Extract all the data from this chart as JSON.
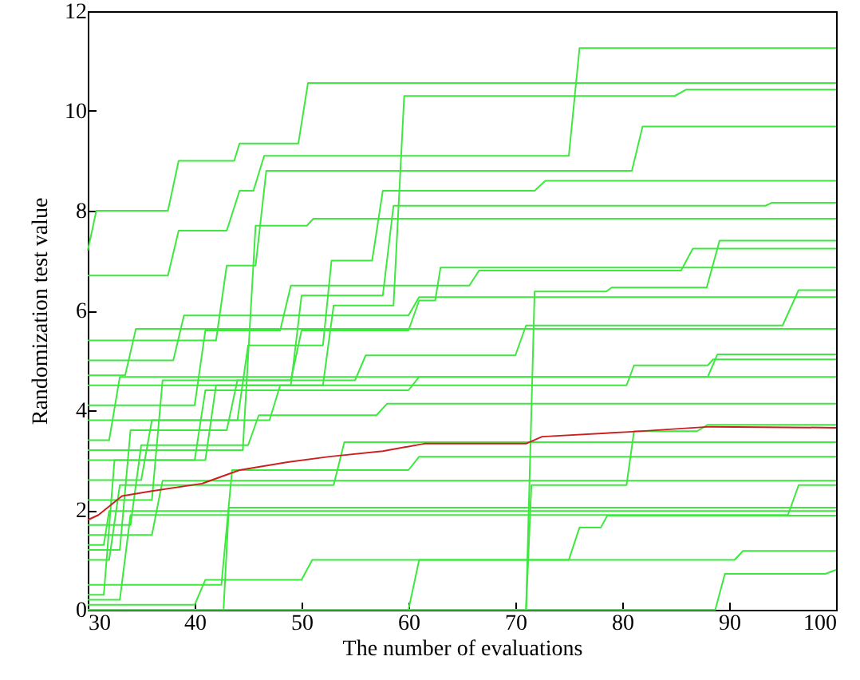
{
  "chart_data": {
    "type": "line",
    "xlabel": "The number of evaluations",
    "ylabel": "Randomization test value",
    "xlim": [
      30,
      100
    ],
    "xticks": [
      30,
      40,
      50,
      60,
      70,
      80,
      90,
      100
    ],
    "ylim": [
      0,
      12
    ],
    "yticks": [
      0,
      2,
      4,
      6,
      8,
      10,
      12
    ],
    "series": [
      {
        "color": "#3ee83e",
        "x": [
          30,
          30.8,
          37.5,
          38.5,
          43.7,
          44.2,
          49.7,
          50.6,
          100
        ],
        "values": [
          7.2,
          8.0,
          8.0,
          9.0,
          9.0,
          9.35,
          9.35,
          10.56,
          10.56
        ]
      },
      {
        "color": "#3ee83e",
        "x": [
          30,
          37.5,
          38.5,
          43,
          44.2,
          45.5,
          46.5,
          75,
          76,
          100
        ],
        "values": [
          6.7,
          6.7,
          7.6,
          7.6,
          8.4,
          8.4,
          9.1,
          9.1,
          11.26,
          11.26
        ]
      },
      {
        "color": "#3ee83e",
        "x": [
          30,
          41,
          42,
          52,
          53,
          58.6,
          59.6,
          84.9,
          86,
          100
        ],
        "values": [
          3.0,
          3.0,
          4.5,
          4.5,
          6.1,
          6.1,
          10.3,
          10.3,
          10.43,
          10.43
        ]
      },
      {
        "color": "#3ee83e",
        "x": [
          30,
          42,
          43,
          45.7,
          46.7,
          80.9,
          81.9,
          100
        ],
        "values": [
          5.4,
          5.4,
          6.9,
          6.9,
          8.8,
          8.8,
          9.69,
          9.69
        ]
      },
      {
        "color": "#3ee83e",
        "x": [
          30,
          44,
          45,
          52,
          52.8,
          56.6,
          57.6,
          71.8,
          72.8,
          100
        ],
        "values": [
          3.8,
          3.8,
          5.3,
          5.3,
          7.0,
          7.0,
          8.4,
          8.4,
          8.6,
          8.6
        ]
      },
      {
        "color": "#3ee83e",
        "x": [
          30,
          49,
          50,
          57.6,
          58.6,
          93.4,
          94,
          100
        ],
        "values": [
          4.5,
          4.5,
          6.3,
          6.3,
          8.1,
          8.1,
          8.16,
          8.16
        ]
      },
      {
        "color": "#3ee83e",
        "x": [
          30,
          44.5,
          45.7,
          50.5,
          51.1,
          100
        ],
        "values": [
          3.2,
          3.2,
          7.7,
          7.7,
          7.84,
          7.84
        ]
      },
      {
        "color": "#3ee83e",
        "x": [
          30,
          71,
          71.8,
          78.5,
          79,
          87.9,
          89.1,
          100
        ],
        "values": [
          0,
          0,
          6.38,
          6.38,
          6.46,
          6.46,
          7.4,
          7.4
        ]
      },
      {
        "color": "#3ee83e",
        "x": [
          30,
          40,
          41,
          48,
          49,
          65.7,
          66.6,
          85.5,
          86.6,
          100
        ],
        "values": [
          4.1,
          4.1,
          5.6,
          5.6,
          6.5,
          6.5,
          6.8,
          6.8,
          7.24,
          7.24
        ]
      },
      {
        "color": "#3ee83e",
        "x": [
          30,
          36,
          37,
          49,
          50,
          60,
          61,
          62.5,
          63,
          100
        ],
        "values": [
          2.2,
          2.2,
          4.6,
          4.6,
          5.6,
          5.6,
          6.2,
          6.2,
          6.86,
          6.86
        ]
      },
      {
        "color": "#3ee83e",
        "x": [
          30,
          33,
          34,
          43,
          44,
          55,
          56,
          70,
          71,
          95,
          96.5,
          100
        ],
        "values": [
          1.2,
          1.2,
          3.6,
          3.6,
          4.6,
          4.6,
          5.1,
          5.1,
          5.7,
          5.7,
          6.41,
          6.41
        ]
      },
      {
        "color": "#3ee83e",
        "x": [
          30,
          38,
          39,
          60,
          61,
          100
        ],
        "values": [
          5.0,
          5.0,
          5.9,
          5.9,
          6.27,
          6.27
        ]
      },
      {
        "color": "#3ee83e",
        "x": [
          30,
          33.5,
          34.5,
          100
        ],
        "values": [
          4.7,
          4.7,
          5.63,
          5.63
        ]
      },
      {
        "color": "#3ee83e",
        "x": [
          30,
          31.5,
          32.5,
          40,
          41,
          60,
          61,
          88,
          88.9,
          100
        ],
        "values": [
          0.3,
          0.3,
          3.0,
          3.0,
          4.4,
          4.4,
          4.67,
          4.67,
          5.12,
          5.12
        ]
      },
      {
        "color": "#3ee83e",
        "x": [
          30,
          35,
          36,
          47,
          48,
          80.4,
          81.1,
          88,
          88.5,
          100
        ],
        "values": [
          2.6,
          2.6,
          3.8,
          3.8,
          4.5,
          4.5,
          4.9,
          4.9,
          5.02,
          5.02
        ]
      },
      {
        "color": "#3ee83e",
        "x": [
          30,
          32,
          33,
          100
        ],
        "values": [
          3.4,
          3.4,
          4.67,
          4.67
        ]
      },
      {
        "color": "#3ee83e",
        "x": [
          30,
          34,
          35,
          45,
          46,
          57,
          58,
          100
        ],
        "values": [
          1.7,
          1.7,
          3.3,
          3.3,
          3.9,
          3.9,
          4.13,
          4.13
        ]
      },
      {
        "color": "#3ee83e",
        "x": [
          30,
          71,
          71.5,
          80.4,
          81.1,
          87,
          88,
          100
        ],
        "values": [
          0,
          0,
          2.5,
          2.5,
          3.58,
          3.58,
          3.71,
          3.71
        ]
      },
      {
        "color": "#3ee83e",
        "x": [
          30,
          32,
          33,
          53,
          54,
          100
        ],
        "values": [
          1.0,
          1.0,
          2.5,
          2.5,
          3.36,
          3.36
        ]
      },
      {
        "color": "#3ee83e",
        "x": [
          30,
          42.5,
          43.5,
          60,
          61,
          100
        ],
        "values": [
          0.5,
          0.5,
          2.8,
          2.8,
          3.07,
          3.07
        ]
      },
      {
        "color": "#3ee83e",
        "x": [
          30,
          36,
          37,
          100
        ],
        "values": [
          1.5,
          1.5,
          2.59,
          2.59
        ]
      },
      {
        "color": "#3ee83e",
        "x": [
          30,
          33,
          34,
          95.5,
          96.5,
          100
        ],
        "values": [
          0.2,
          0.2,
          1.9,
          1.9,
          2.5,
          2.5
        ]
      },
      {
        "color": "#3ee83e",
        "x": [
          30,
          42.7,
          43.2,
          100
        ],
        "values": [
          0,
          0,
          2.05,
          2.05
        ]
      },
      {
        "color": "#3ee83e",
        "x": [
          30,
          31.5,
          32,
          100
        ],
        "values": [
          1.3,
          1.3,
          1.98,
          1.98
        ]
      },
      {
        "color": "#3ee83e",
        "x": [
          30,
          60,
          61,
          75,
          76,
          78,
          78.6,
          100
        ],
        "values": [
          0,
          0,
          1.0,
          1.0,
          1.65,
          1.65,
          1.89,
          1.89
        ]
      },
      {
        "color": "#3ee83e",
        "x": [
          30,
          40,
          41,
          50,
          51,
          90.5,
          91.3,
          100
        ],
        "values": [
          0.1,
          0.1,
          0.6,
          0.6,
          1.0,
          1.0,
          1.18,
          1.18
        ]
      },
      {
        "color": "#3ee83e",
        "x": [
          30,
          88.7,
          89.6,
          99,
          100
        ],
        "values": [
          0,
          0,
          0.72,
          0.72,
          0.8
        ]
      },
      {
        "color": "#cc2020",
        "x": [
          30,
          31,
          33.2,
          36,
          40.7,
          44.2,
          48.7,
          52.6,
          57.6,
          61.5,
          71,
          72.5,
          81,
          88.2,
          100
        ],
        "values": [
          1.8,
          1.9,
          2.28,
          2.38,
          2.53,
          2.8,
          2.96,
          3.07,
          3.18,
          3.33,
          3.33,
          3.47,
          3.57,
          3.67,
          3.65
        ]
      }
    ]
  }
}
